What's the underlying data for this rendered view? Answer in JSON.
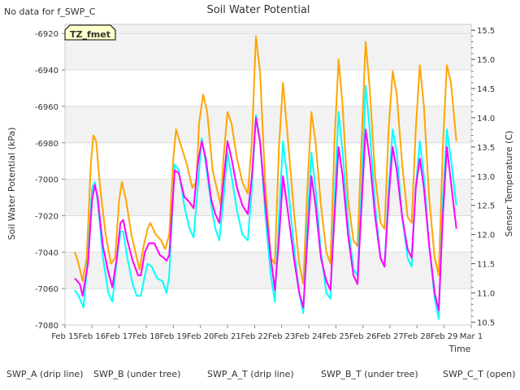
{
  "chart_data": {
    "type": "line",
    "title": "Soil Water Potential",
    "no_data_note": "No data for f_SWP_C",
    "tz_badge": "TZ_fmet",
    "xlabel": "Time",
    "ylabel_left": "Soil Water Potential (kPa)",
    "ylabel_right": "Sensor Temperature (C)",
    "y_left_lim": [
      -7080,
      -6915
    ],
    "y_left_ticks": [
      "-7080",
      "-7060",
      "-7040",
      "-7020",
      "-7000",
      "-6980",
      "-6960",
      "-6940",
      "-6920"
    ],
    "y_right_lim": [
      10.45,
      15.6
    ],
    "y_right_ticks": [
      "10.5",
      "11.0",
      "11.5",
      "12.0",
      "12.5",
      "13.0",
      "13.5",
      "14.0",
      "14.5",
      "15.0",
      "15.5"
    ],
    "x_ticks": [
      "Feb 15",
      "Feb 16",
      "Feb 17",
      "Feb 18",
      "Feb 19",
      "Feb 20",
      "Feb 21",
      "Feb 22",
      "Feb 23",
      "Feb 24",
      "Feb 25",
      "Feb 26",
      "Feb 27",
      "Feb 28",
      "Feb 29",
      "Mar 1"
    ],
    "x_range_days": [
      0,
      15
    ],
    "grid": true,
    "legend_position": "bottom",
    "series": [
      {
        "name": "SWP_A (drip line)",
        "color": "#ff0000",
        "axis": "left",
        "points": []
      },
      {
        "name": "SWP_B (under tree)",
        "color": "#0000cc",
        "axis": "left",
        "points": []
      },
      {
        "name": "SWP_A_T (drip line)",
        "color": "#ff00ff",
        "axis": "right",
        "points": [
          [
            0.36,
            11.25
          ],
          [
            0.55,
            11.15
          ],
          [
            0.65,
            10.95
          ],
          [
            0.85,
            11.5
          ],
          [
            1.0,
            12.6
          ],
          [
            1.1,
            12.85
          ],
          [
            1.2,
            12.65
          ],
          [
            1.4,
            11.8
          ],
          [
            1.6,
            11.35
          ],
          [
            1.75,
            11.1
          ],
          [
            1.9,
            11.55
          ],
          [
            2.05,
            12.2
          ],
          [
            2.15,
            12.25
          ],
          [
            2.3,
            11.9
          ],
          [
            2.5,
            11.55
          ],
          [
            2.7,
            11.3
          ],
          [
            2.8,
            11.3
          ],
          [
            2.95,
            11.7
          ],
          [
            3.1,
            11.85
          ],
          [
            3.3,
            11.85
          ],
          [
            3.5,
            11.65
          ],
          [
            3.65,
            11.6
          ],
          [
            3.75,
            11.55
          ],
          [
            3.85,
            11.65
          ],
          [
            4.05,
            13.1
          ],
          [
            4.2,
            13.05
          ],
          [
            4.4,
            12.65
          ],
          [
            4.6,
            12.55
          ],
          [
            4.75,
            12.45
          ],
          [
            4.9,
            13.2
          ],
          [
            5.05,
            13.6
          ],
          [
            5.2,
            13.3
          ],
          [
            5.4,
            12.6
          ],
          [
            5.55,
            12.35
          ],
          [
            5.7,
            12.2
          ],
          [
            5.85,
            12.9
          ],
          [
            6.0,
            13.6
          ],
          [
            6.15,
            13.3
          ],
          [
            6.35,
            12.8
          ],
          [
            6.55,
            12.5
          ],
          [
            6.75,
            12.35
          ],
          [
            6.9,
            13.0
          ],
          [
            7.05,
            14.0
          ],
          [
            7.2,
            13.6
          ],
          [
            7.4,
            12.5
          ],
          [
            7.6,
            11.6
          ],
          [
            7.75,
            11.05
          ],
          [
            7.9,
            11.9
          ],
          [
            8.05,
            13.0
          ],
          [
            8.2,
            12.5
          ],
          [
            8.45,
            11.6
          ],
          [
            8.65,
            11.0
          ],
          [
            8.8,
            10.75
          ],
          [
            8.95,
            11.9
          ],
          [
            9.1,
            13.0
          ],
          [
            9.25,
            12.5
          ],
          [
            9.45,
            11.6
          ],
          [
            9.65,
            11.2
          ],
          [
            9.8,
            11.05
          ],
          [
            9.95,
            12.3
          ],
          [
            10.1,
            13.5
          ],
          [
            10.25,
            13.0
          ],
          [
            10.45,
            12.0
          ],
          [
            10.65,
            11.3
          ],
          [
            10.8,
            11.15
          ],
          [
            10.95,
            12.5
          ],
          [
            11.1,
            13.8
          ],
          [
            11.25,
            13.3
          ],
          [
            11.45,
            12.3
          ],
          [
            11.65,
            11.6
          ],
          [
            11.8,
            11.45
          ],
          [
            11.95,
            12.6
          ],
          [
            12.1,
            13.5
          ],
          [
            12.25,
            13.1
          ],
          [
            12.45,
            12.3
          ],
          [
            12.65,
            11.75
          ],
          [
            12.8,
            11.6
          ],
          [
            12.95,
            12.8
          ],
          [
            13.1,
            13.3
          ],
          [
            13.25,
            12.8
          ],
          [
            13.45,
            11.8
          ],
          [
            13.65,
            11.0
          ],
          [
            13.8,
            10.7
          ],
          [
            13.95,
            12.3
          ],
          [
            14.1,
            13.5
          ],
          [
            14.25,
            12.9
          ],
          [
            14.45,
            12.1
          ]
        ]
      },
      {
        "name": "SWP_B_T (under tree)",
        "color": "#00ffff",
        "axis": "right",
        "points": [
          [
            0.36,
            11.05
          ],
          [
            0.5,
            10.95
          ],
          [
            0.68,
            10.75
          ],
          [
            0.85,
            11.6
          ],
          [
            1.0,
            12.8
          ],
          [
            1.1,
            12.9
          ],
          [
            1.2,
            12.6
          ],
          [
            1.4,
            11.6
          ],
          [
            1.6,
            11.0
          ],
          [
            1.75,
            10.85
          ],
          [
            1.9,
            11.5
          ],
          [
            2.05,
            12.05
          ],
          [
            2.15,
            12.05
          ],
          [
            2.3,
            11.6
          ],
          [
            2.5,
            11.15
          ],
          [
            2.65,
            10.95
          ],
          [
            2.8,
            10.95
          ],
          [
            2.95,
            11.3
          ],
          [
            3.05,
            11.5
          ],
          [
            3.2,
            11.45
          ],
          [
            3.4,
            11.25
          ],
          [
            3.6,
            11.2
          ],
          [
            3.75,
            11.0
          ],
          [
            3.85,
            11.3
          ],
          [
            4.05,
            13.2
          ],
          [
            4.2,
            13.1
          ],
          [
            4.4,
            12.5
          ],
          [
            4.6,
            12.1
          ],
          [
            4.75,
            11.95
          ],
          [
            4.9,
            12.8
          ],
          [
            5.05,
            13.65
          ],
          [
            5.2,
            13.2
          ],
          [
            5.4,
            12.5
          ],
          [
            5.55,
            12.1
          ],
          [
            5.7,
            11.9
          ],
          [
            5.85,
            12.6
          ],
          [
            6.0,
            13.4
          ],
          [
            6.15,
            13.0
          ],
          [
            6.35,
            12.4
          ],
          [
            6.55,
            12.0
          ],
          [
            6.75,
            11.9
          ],
          [
            6.9,
            12.8
          ],
          [
            7.05,
            14.05
          ],
          [
            7.2,
            13.6
          ],
          [
            7.4,
            12.3
          ],
          [
            7.6,
            11.3
          ],
          [
            7.75,
            10.85
          ],
          [
            7.9,
            12.3
          ],
          [
            8.05,
            13.6
          ],
          [
            8.2,
            13.0
          ],
          [
            8.45,
            11.8
          ],
          [
            8.65,
            11.0
          ],
          [
            8.8,
            10.65
          ],
          [
            8.95,
            12.2
          ],
          [
            9.1,
            13.4
          ],
          [
            9.25,
            12.8
          ],
          [
            9.45,
            11.7
          ],
          [
            9.65,
            11.0
          ],
          [
            9.8,
            10.9
          ],
          [
            9.95,
            12.6
          ],
          [
            10.1,
            14.1
          ],
          [
            10.25,
            13.4
          ],
          [
            10.45,
            12.2
          ],
          [
            10.65,
            11.4
          ],
          [
            10.8,
            11.3
          ],
          [
            10.95,
            12.8
          ],
          [
            11.1,
            14.55
          ],
          [
            11.25,
            13.8
          ],
          [
            11.45,
            12.5
          ],
          [
            11.65,
            11.6
          ],
          [
            11.8,
            11.45
          ],
          [
            11.95,
            12.8
          ],
          [
            12.1,
            13.8
          ],
          [
            12.25,
            13.4
          ],
          [
            12.45,
            12.3
          ],
          [
            12.65,
            11.6
          ],
          [
            12.8,
            11.45
          ],
          [
            12.95,
            12.8
          ],
          [
            13.1,
            13.6
          ],
          [
            13.25,
            13.0
          ],
          [
            13.45,
            11.8
          ],
          [
            13.65,
            10.9
          ],
          [
            13.8,
            10.55
          ],
          [
            13.95,
            12.6
          ],
          [
            14.1,
            13.8
          ],
          [
            14.25,
            13.3
          ],
          [
            14.45,
            12.5
          ]
        ]
      },
      {
        "name": "SWP_C_T (open)",
        "color": "#ffa500",
        "axis": "right",
        "points": [
          [
            0.36,
            11.7
          ],
          [
            0.5,
            11.5
          ],
          [
            0.65,
            11.2
          ],
          [
            0.8,
            11.6
          ],
          [
            0.95,
            13.2
          ],
          [
            1.05,
            13.7
          ],
          [
            1.15,
            13.6
          ],
          [
            1.3,
            12.8
          ],
          [
            1.5,
            12.0
          ],
          [
            1.7,
            11.5
          ],
          [
            1.85,
            11.6
          ],
          [
            2.0,
            12.6
          ],
          [
            2.1,
            12.9
          ],
          [
            2.25,
            12.6
          ],
          [
            2.45,
            12.0
          ],
          [
            2.6,
            11.7
          ],
          [
            2.75,
            11.4
          ],
          [
            2.9,
            11.8
          ],
          [
            3.05,
            12.1
          ],
          [
            3.15,
            12.2
          ],
          [
            3.35,
            12.0
          ],
          [
            3.55,
            11.9
          ],
          [
            3.7,
            11.75
          ],
          [
            3.85,
            12.0
          ],
          [
            4.0,
            13.3
          ],
          [
            4.1,
            13.8
          ],
          [
            4.3,
            13.5
          ],
          [
            4.5,
            13.2
          ],
          [
            4.7,
            12.8
          ],
          [
            4.85,
            12.9
          ],
          [
            4.95,
            13.9
          ],
          [
            5.1,
            14.4
          ],
          [
            5.25,
            14.1
          ],
          [
            5.45,
            13.1
          ],
          [
            5.6,
            12.8
          ],
          [
            5.75,
            12.5
          ],
          [
            5.85,
            13.3
          ],
          [
            6.0,
            14.1
          ],
          [
            6.15,
            13.9
          ],
          [
            6.35,
            13.3
          ],
          [
            6.55,
            12.9
          ],
          [
            6.75,
            12.7
          ],
          [
            6.9,
            13.6
          ],
          [
            7.05,
            15.4
          ],
          [
            7.2,
            14.8
          ],
          [
            7.4,
            12.8
          ],
          [
            7.6,
            11.6
          ],
          [
            7.75,
            11.5
          ],
          [
            7.9,
            13.5
          ],
          [
            8.05,
            14.6
          ],
          [
            8.2,
            13.8
          ],
          [
            8.45,
            12.4
          ],
          [
            8.65,
            11.5
          ],
          [
            8.8,
            11.15
          ],
          [
            8.95,
            12.8
          ],
          [
            9.1,
            14.1
          ],
          [
            9.25,
            13.6
          ],
          [
            9.45,
            12.5
          ],
          [
            9.65,
            11.7
          ],
          [
            9.8,
            11.5
          ],
          [
            9.95,
            13.6
          ],
          [
            10.1,
            15.0
          ],
          [
            10.25,
            14.2
          ],
          [
            10.45,
            12.6
          ],
          [
            10.65,
            11.9
          ],
          [
            10.8,
            11.8
          ],
          [
            10.95,
            13.6
          ],
          [
            11.1,
            15.3
          ],
          [
            11.25,
            14.5
          ],
          [
            11.45,
            13.0
          ],
          [
            11.65,
            12.2
          ],
          [
            11.8,
            12.1
          ],
          [
            11.95,
            13.8
          ],
          [
            12.1,
            14.8
          ],
          [
            12.25,
            14.4
          ],
          [
            12.45,
            13.2
          ],
          [
            12.65,
            12.3
          ],
          [
            12.8,
            12.2
          ],
          [
            12.95,
            13.8
          ],
          [
            13.1,
            14.9
          ],
          [
            13.25,
            14.2
          ],
          [
            13.45,
            12.6
          ],
          [
            13.65,
            11.6
          ],
          [
            13.8,
            11.3
          ],
          [
            13.95,
            13.5
          ],
          [
            14.1,
            14.9
          ],
          [
            14.25,
            14.6
          ],
          [
            14.45,
            13.6
          ]
        ]
      }
    ]
  }
}
